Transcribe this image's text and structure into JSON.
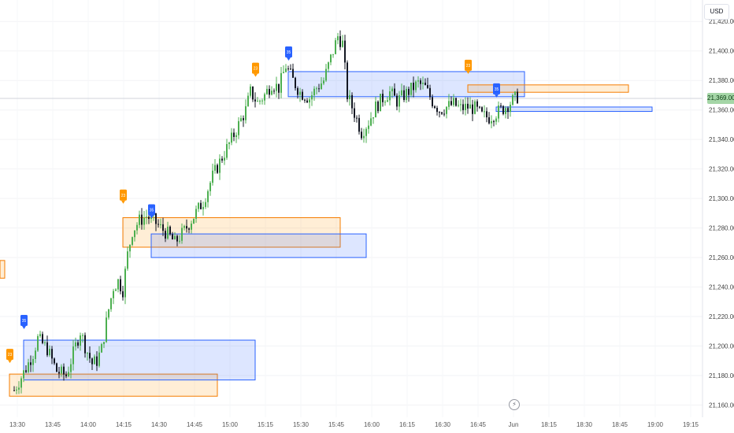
{
  "currency": "USD",
  "last_price_label": "21,369.00",
  "replay_icon": "lightning-icon",
  "colors": {
    "up": "#4caf50",
    "down": "#131722",
    "blue_zone_fill": "rgba(41,98,255,0.16)",
    "blue_zone_stroke": "#2962ff",
    "orange_zone_fill": "rgba(255,152,0,0.16)",
    "orange_zone_stroke": "#f57c00",
    "marker_blue": "#2962ff",
    "marker_orange": "#ff9800",
    "last_price": "#a5d6a7"
  },
  "chart_data": {
    "type": "candlestick",
    "x_tick_labels": [
      "13:30",
      "13:45",
      "14:00",
      "14:15",
      "14:30",
      "14:45",
      "15:00",
      "15:15",
      "15:30",
      "15:45",
      "16:00",
      "16:15",
      "16:30",
      "16:45",
      "Jun",
      "18:15",
      "18:30",
      "18:45",
      "19:00",
      "19:15"
    ],
    "y_tick_labels": [
      "21,160.00",
      "21,180.00",
      "21,200.00",
      "21,220.00",
      "21,240.00",
      "21,260.00",
      "21,280.00",
      "21,300.00",
      "21,320.00",
      "21,340.00",
      "21,360.00",
      "21,380.00",
      "21,400.00",
      "21,420.00"
    ],
    "y_ticks": [
      21160,
      21180,
      21200,
      21220,
      21240,
      21260,
      21280,
      21300,
      21320,
      21340,
      21360,
      21380,
      21400,
      21420
    ],
    "ylim": [
      21156,
      21426
    ],
    "last_price": 21369,
    "markers": [
      {
        "label": "23",
        "color": "orange",
        "minute": -2,
        "price": 21189
      },
      {
        "label": "35",
        "color": "blue",
        "minute": 4,
        "price": 21212
      },
      {
        "label": "23",
        "color": "orange",
        "minute": 46,
        "price": 21297
      },
      {
        "label": "35",
        "color": "blue",
        "minute": 58,
        "price": 21287
      },
      {
        "label": "23",
        "color": "orange",
        "minute": 102,
        "price": 21383
      },
      {
        "label": "35",
        "color": "blue",
        "minute": 116,
        "price": 21394
      },
      {
        "label": "23",
        "color": "orange",
        "minute": 192,
        "price": 21385
      },
      {
        "label": "35",
        "color": "blue",
        "minute": 204,
        "price": 21369
      }
    ],
    "zones": [
      {
        "color": "orange",
        "start_minute": -62,
        "end_minute": -4,
        "low": 21246,
        "high": 21258
      },
      {
        "color": "orange",
        "start_minute": -2,
        "end_minute": 86,
        "low": 21166,
        "high": 21181
      },
      {
        "color": "blue",
        "start_minute": 4,
        "end_minute": 102,
        "low": 21177,
        "high": 21204
      },
      {
        "color": "orange",
        "start_minute": 46,
        "end_minute": 138,
        "low": 21267,
        "high": 21287
      },
      {
        "color": "blue",
        "start_minute": 58,
        "end_minute": 149,
        "low": 21260,
        "high": 21276
      },
      {
        "color": "blue",
        "start_minute": 116,
        "end_minute": 216,
        "low": 21369,
        "high": 21386
      },
      {
        "color": "orange",
        "start_minute": 192,
        "end_minute": 260,
        "low": 21372,
        "high": 21377
      },
      {
        "color": "blue",
        "start_minute": 204,
        "end_minute": 270,
        "low": 21359,
        "high": 21362
      }
    ],
    "price_path": [
      [
        0,
        21170
      ],
      [
        5,
        21185
      ],
      [
        8,
        21195
      ],
      [
        10,
        21205
      ],
      [
        14,
        21198
      ],
      [
        18,
        21183
      ],
      [
        22,
        21180
      ],
      [
        25,
        21195
      ],
      [
        28,
        21210
      ],
      [
        30,
        21200
      ],
      [
        33,
        21188
      ],
      [
        35,
        21190
      ],
      [
        37,
        21198
      ],
      [
        40,
        21225
      ],
      [
        42,
        21240
      ],
      [
        44,
        21244
      ],
      [
        46,
        21238
      ],
      [
        48,
        21262
      ],
      [
        50,
        21278
      ],
      [
        53,
        21285
      ],
      [
        56,
        21288
      ],
      [
        59,
        21285
      ],
      [
        62,
        21280
      ],
      [
        65,
        21276
      ],
      [
        68,
        21270
      ],
      [
        72,
        21278
      ],
      [
        76,
        21288
      ],
      [
        80,
        21298
      ],
      [
        84,
        21315
      ],
      [
        88,
        21328
      ],
      [
        92,
        21340
      ],
      [
        95,
        21350
      ],
      [
        98,
        21360
      ],
      [
        100,
        21372
      ],
      [
        103,
        21365
      ],
      [
        106,
        21370
      ],
      [
        109,
        21378
      ],
      [
        112,
        21375
      ],
      [
        115,
        21390
      ],
      [
        118,
        21380
      ],
      [
        121,
        21372
      ],
      [
        125,
        21368
      ],
      [
        128,
        21375
      ],
      [
        131,
        21380
      ],
      [
        134,
        21395
      ],
      [
        137,
        21410
      ],
      [
        139,
        21405
      ],
      [
        141,
        21370
      ],
      [
        144,
        21358
      ],
      [
        147,
        21345
      ],
      [
        150,
        21352
      ],
      [
        153,
        21362
      ],
      [
        156,
        21368
      ],
      [
        159,
        21372
      ],
      [
        162,
        21366
      ],
      [
        165,
        21370
      ],
      [
        168,
        21374
      ],
      [
        171,
        21378
      ],
      [
        174,
        21375
      ],
      [
        177,
        21366
      ],
      [
        180,
        21360
      ],
      [
        183,
        21362
      ],
      [
        186,
        21364
      ],
      [
        189,
        21361
      ],
      [
        192,
        21362
      ],
      [
        195,
        21361
      ],
      [
        198,
        21356
      ],
      [
        201,
        21355
      ],
      [
        204,
        21358
      ],
      [
        207,
        21361
      ],
      [
        210,
        21365
      ],
      [
        213,
        21369
      ]
    ],
    "xlim_minutes": [
      -3,
      354
    ]
  }
}
